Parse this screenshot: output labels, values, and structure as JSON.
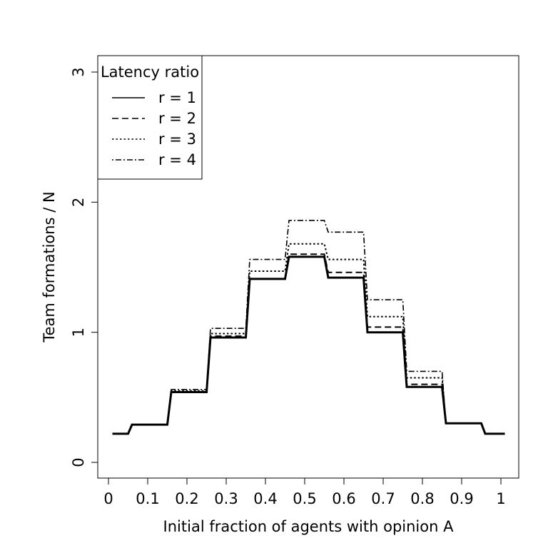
{
  "chart_data": {
    "type": "line",
    "title": "",
    "xlabel": "Initial fraction of agents with opinion A",
    "ylabel": "Team formations / N",
    "xlim": [
      0,
      1
    ],
    "ylim": [
      0,
      3
    ],
    "xticks": [
      {
        "value": 0,
        "label": "0"
      },
      {
        "value": 0.1,
        "label": "0.1"
      },
      {
        "value": 0.2,
        "label": "0.2"
      },
      {
        "value": 0.3,
        "label": "0.3"
      },
      {
        "value": 0.4,
        "label": "0.4"
      },
      {
        "value": 0.5,
        "label": "0.5"
      },
      {
        "value": 0.6,
        "label": "0.6"
      },
      {
        "value": 0.7,
        "label": "0.7"
      },
      {
        "value": 0.8,
        "label": "0.8"
      },
      {
        "value": 0.9,
        "label": "0.9"
      },
      {
        "value": 1,
        "label": "1"
      }
    ],
    "yticks": [
      {
        "value": 0,
        "label": "0"
      },
      {
        "value": 1,
        "label": "1"
      },
      {
        "value": 2,
        "label": "2"
      },
      {
        "value": 3,
        "label": "3"
      }
    ],
    "grid": false,
    "legend": {
      "title": "Latency ratio",
      "placement": "top-left"
    },
    "series": [
      {
        "name": "r = 1",
        "style": "solid",
        "x": [
          0.01,
          0.05,
          0.06,
          0.15,
          0.16,
          0.25,
          0.26,
          0.35,
          0.36,
          0.45,
          0.46,
          0.55,
          0.56,
          0.65,
          0.66,
          0.75,
          0.76,
          0.85,
          0.86,
          0.95,
          0.96,
          1.01
        ],
        "y": [
          0.22,
          0.22,
          0.29,
          0.29,
          0.54,
          0.54,
          0.96,
          0.96,
          1.41,
          1.41,
          1.58,
          1.58,
          1.42,
          1.42,
          1.0,
          1.0,
          0.58,
          0.58,
          0.3,
          0.3,
          0.22,
          0.22
        ]
      },
      {
        "name": "r = 2",
        "style": "dashed",
        "x": [
          0.01,
          0.05,
          0.06,
          0.15,
          0.16,
          0.25,
          0.26,
          0.35,
          0.36,
          0.45,
          0.46,
          0.55,
          0.56,
          0.65,
          0.66,
          0.75,
          0.76,
          0.85,
          0.86,
          0.95,
          0.96,
          1.01
        ],
        "y": [
          0.22,
          0.22,
          0.29,
          0.29,
          0.54,
          0.54,
          0.97,
          0.97,
          1.41,
          1.41,
          1.6,
          1.6,
          1.46,
          1.46,
          1.04,
          1.04,
          0.6,
          0.6,
          0.3,
          0.3,
          0.22,
          0.22
        ]
      },
      {
        "name": "r = 3",
        "style": "dotted",
        "x": [
          0.01,
          0.05,
          0.06,
          0.15,
          0.16,
          0.25,
          0.26,
          0.35,
          0.36,
          0.45,
          0.46,
          0.55,
          0.56,
          0.65,
          0.66,
          0.75,
          0.76,
          0.85,
          0.86,
          0.95,
          0.96,
          1.01
        ],
        "y": [
          0.22,
          0.22,
          0.29,
          0.29,
          0.55,
          0.55,
          0.99,
          0.99,
          1.47,
          1.47,
          1.68,
          1.68,
          1.56,
          1.56,
          1.12,
          1.12,
          0.65,
          0.65,
          0.3,
          0.3,
          0.22,
          0.22
        ]
      },
      {
        "name": "r = 4",
        "style": "dotdash",
        "x": [
          0.01,
          0.05,
          0.06,
          0.15,
          0.16,
          0.25,
          0.26,
          0.35,
          0.36,
          0.45,
          0.46,
          0.55,
          0.56,
          0.65,
          0.66,
          0.75,
          0.76,
          0.85,
          0.86,
          0.95,
          0.96,
          1.01
        ],
        "y": [
          0.22,
          0.22,
          0.29,
          0.29,
          0.56,
          0.56,
          1.03,
          1.03,
          1.56,
          1.56,
          1.86,
          1.86,
          1.77,
          1.77,
          1.25,
          1.25,
          0.7,
          0.7,
          0.3,
          0.3,
          0.22,
          0.22
        ]
      }
    ]
  }
}
